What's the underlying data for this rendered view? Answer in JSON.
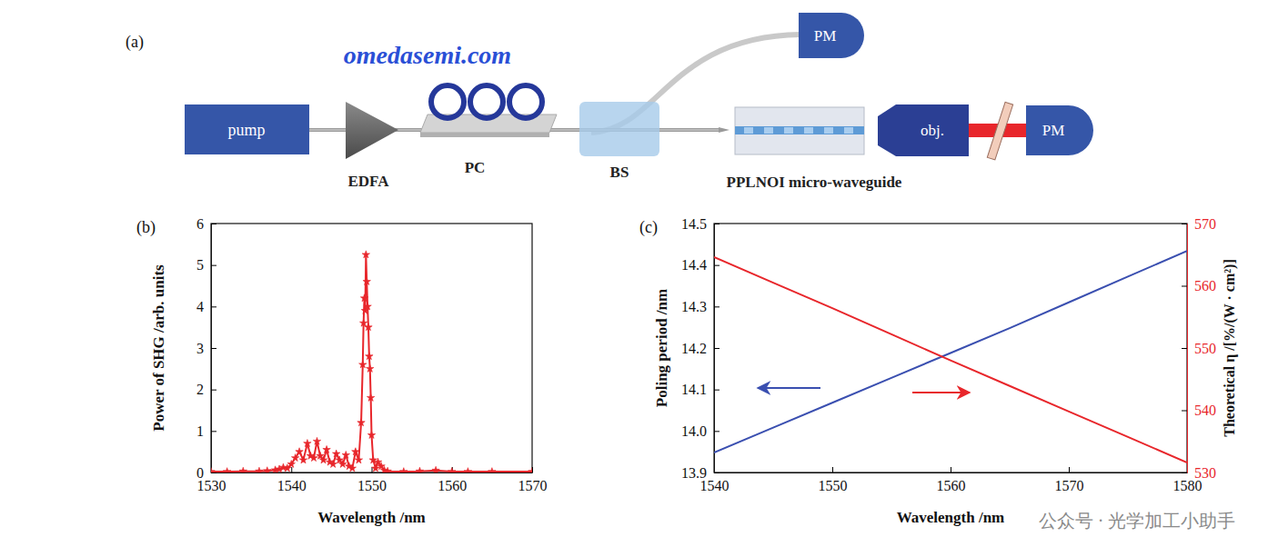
{
  "diagram": {
    "label": "(a)",
    "nodes": [
      {
        "label": "pump"
      },
      {
        "label": "EDFA"
      },
      {
        "label": "PC"
      },
      {
        "label": "BS"
      },
      {
        "label": "PPLNOI micro-waveguide"
      },
      {
        "label": "obj."
      },
      {
        "label": "PM"
      },
      {
        "label": "PM"
      }
    ]
  },
  "chart_data": [
    {
      "type": "line",
      "panel": "(b)",
      "x_label": "Wavelength /nm",
      "y_label": "Power of SHG /arb. units",
      "x": [
        1530,
        1532,
        1534,
        1536,
        1537,
        1538,
        1538.5,
        1539,
        1539.5,
        1540,
        1540.5,
        1541,
        1541.5,
        1542,
        1542.4,
        1542.8,
        1543.2,
        1543.6,
        1544,
        1544.4,
        1544.8,
        1545.2,
        1545.6,
        1546,
        1546.4,
        1546.8,
        1547.2,
        1547.6,
        1548,
        1548.4,
        1548.7,
        1548.9,
        1549.0,
        1549.1,
        1549.2,
        1549.3,
        1549.4,
        1549.5,
        1549.6,
        1549.7,
        1549.8,
        1549.9,
        1550,
        1550.2,
        1550.5,
        1550.8,
        1551.2,
        1551.6,
        1552,
        1554,
        1556,
        1558,
        1560,
        1562,
        1565,
        1570
      ],
      "series": [
        {
          "color": "#e8262b",
          "marker": "star",
          "line_style": "solid",
          "values": [
            0.02,
            0.02,
            0.03,
            0.03,
            0.04,
            0.06,
            0.08,
            0.12,
            0.1,
            0.2,
            0.35,
            0.5,
            0.3,
            0.7,
            0.4,
            0.35,
            0.75,
            0.4,
            0.3,
            0.55,
            0.25,
            0.2,
            0.45,
            0.3,
            0.2,
            0.42,
            0.15,
            0.1,
            0.5,
            0.3,
            1.2,
            2.6,
            3.6,
            4.2,
            3.9,
            5.25,
            4.6,
            4.0,
            3.5,
            2.8,
            2.5,
            1.8,
            0.9,
            0.3,
            0.1,
            0.25,
            0.15,
            0.05,
            0.03,
            0.02,
            0.03,
            0.05,
            0.02,
            0.02,
            0.02,
            0.02
          ]
        }
      ],
      "xlim": [
        1530,
        1570
      ],
      "ylim": [
        0,
        6
      ],
      "xticks": [
        1530,
        1540,
        1550,
        1560,
        1570
      ],
      "yticks": [
        0,
        1,
        2,
        3,
        4,
        5,
        6
      ],
      "grid": false
    },
    {
      "type": "line",
      "panel": "(c)",
      "x_label": "Wavelength /nm",
      "y_label": "Poling period /nm",
      "y2_label": "Theoretical η /[%/(W · cm²)]",
      "x": [
        1540,
        1545,
        1550,
        1555,
        1560,
        1565,
        1570,
        1575,
        1580
      ],
      "series": [
        {
          "color": "#3a4fb0",
          "axis": "y",
          "line_style": "solid",
          "values": [
            13.948,
            14.008,
            14.068,
            14.128,
            14.188,
            14.248,
            14.31,
            14.372,
            14.434
          ]
        },
        {
          "color": "#e8262b",
          "axis": "y2",
          "line_style": "solid",
          "values": [
            564.6,
            560.5,
            556.4,
            552.2,
            548.0,
            543.9,
            539.8,
            535.7,
            531.6
          ]
        }
      ],
      "xlim": [
        1540,
        1580
      ],
      "ylim": [
        13.9,
        14.5
      ],
      "y2lim": [
        530,
        570
      ],
      "xticks": [
        1540,
        1550,
        1560,
        1570,
        1580
      ],
      "yticks": [
        13.9,
        {
          "value": 14.0,
          "label": "14.0"
        },
        14.1,
        14.2,
        14.3,
        14.4,
        14.5
      ],
      "y2ticks": [
        530,
        540,
        550,
        560,
        570
      ],
      "grid": false
    }
  ],
  "watermarks": [
    "omedasemi.com",
    "公众号 · 光学加工小助手"
  ]
}
